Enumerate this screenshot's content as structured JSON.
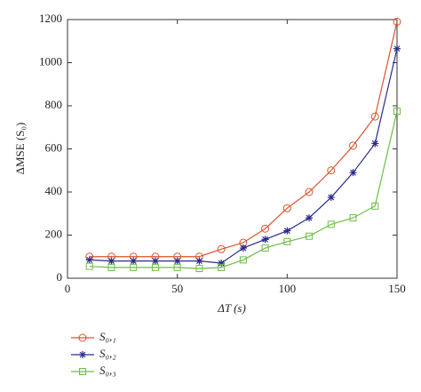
{
  "chart_data": {
    "type": "line",
    "x_label": "ΔT (s)",
    "y_label": "ΔMSE (S₀)",
    "x": [
      10,
      20,
      30,
      40,
      50,
      60,
      70,
      80,
      90,
      100,
      110,
      120,
      130,
      140,
      150
    ],
    "series": [
      {
        "name": "S₀,₁",
        "color": "#d9542b",
        "marker": "circle",
        "values": [
          100,
          100,
          100,
          100,
          100,
          100,
          135,
          165,
          230,
          325,
          400,
          500,
          615,
          750,
          1190
        ]
      },
      {
        "name": "S₀,₂",
        "color": "#2b2b8f",
        "marker": "star",
        "values": [
          85,
          80,
          80,
          80,
          80,
          80,
          70,
          140,
          180,
          220,
          280,
          375,
          490,
          625,
          1065
        ]
      },
      {
        "name": "S₀,₃",
        "color": "#6cbd45",
        "marker": "square",
        "values": [
          55,
          50,
          50,
          50,
          50,
          45,
          50,
          85,
          140,
          170,
          195,
          250,
          280,
          335,
          775
        ]
      }
    ],
    "xlim": [
      0,
      150
    ],
    "xticks": [
      0,
      50,
      100,
      150
    ],
    "ylim": [
      0,
      1200
    ],
    "yticks": [
      0,
      200,
      400,
      600,
      800,
      1000,
      1200
    ],
    "grid": false,
    "legend": "below-left"
  }
}
